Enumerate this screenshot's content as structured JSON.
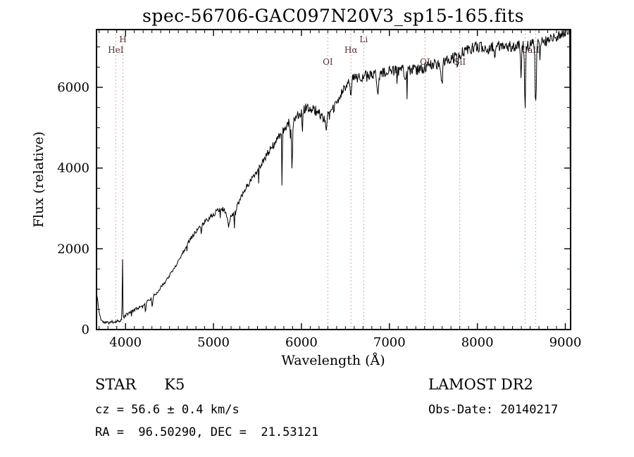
{
  "title": "spec-56706-GAC097N20V3_sp15-165.fits",
  "footer": {
    "class_line": "STAR      K5",
    "survey": "LAMOST DR2",
    "cz_line": "cz = 56.6 ± 0.4 km/s",
    "obs_date_line": "Obs-Date: 20140217",
    "radec_line": "RA =  96.50290, DEC =  21.53121"
  },
  "chart_data": {
    "type": "line",
    "title": "spec-56706-GAC097N20V3_sp15-165.fits",
    "xlabel": "Wavelength (Å)",
    "ylabel": "Flux (relative)",
    "xlim": [
      3670,
      9060
    ],
    "ylim": [
      0,
      7430
    ],
    "x_major_ticks": [
      4000,
      5000,
      6000,
      7000,
      8000,
      9000
    ],
    "y_major_ticks": [
      0,
      2000,
      4000,
      6000
    ],
    "x_minor_step": 100,
    "y_minor_step": 500,
    "grid": false,
    "legend": false,
    "line_color": "#000000",
    "marker_line_color": "#c98f8f",
    "marker_label_color": "#552e2e",
    "line_markers": [
      {
        "label": "HeI",
        "wl": 3889,
        "row": 1
      },
      {
        "label": "H",
        "wl": 3970,
        "row": 0
      },
      {
        "label": "OI",
        "wl": 6300,
        "row": 2
      },
      {
        "label": "Hα",
        "wl": 6563,
        "row": 1
      },
      {
        "label": "Li",
        "wl": 6708,
        "row": 0
      },
      {
        "label": "OI",
        "wl": 7405,
        "row": 2
      },
      {
        "label": "SiI",
        "wl": 7800,
        "row": 2
      },
      {
        "label": "CaII",
        "wl": 8542,
        "row": 1,
        "label_dx": 60
      },
      {
        "label": "",
        "wl": 8662,
        "row": 1
      }
    ],
    "continuum": [
      [
        3672,
        870
      ],
      [
        3685,
        700
      ],
      [
        3700,
        420
      ],
      [
        3720,
        260
      ],
      [
        3745,
        180
      ],
      [
        3800,
        170
      ],
      [
        3850,
        190
      ],
      [
        3900,
        205
      ],
      [
        3950,
        235
      ],
      [
        3990,
        330
      ],
      [
        4050,
        430
      ],
      [
        4150,
        545
      ],
      [
        4250,
        700
      ],
      [
        4350,
        900
      ],
      [
        4450,
        1180
      ],
      [
        4550,
        1500
      ],
      [
        4650,
        1900
      ],
      [
        4750,
        2300
      ],
      [
        4850,
        2560
      ],
      [
        4950,
        2760
      ],
      [
        5050,
        2950
      ],
      [
        5120,
        2980
      ],
      [
        5175,
        2770
      ],
      [
        5235,
        2860
      ],
      [
        5300,
        3250
      ],
      [
        5400,
        3620
      ],
      [
        5500,
        3950
      ],
      [
        5600,
        4300
      ],
      [
        5700,
        4620
      ],
      [
        5800,
        4950
      ],
      [
        5870,
        5150
      ],
      [
        5950,
        5300
      ],
      [
        6050,
        5480
      ],
      [
        6150,
        5450
      ],
      [
        6250,
        5250
      ],
      [
        6320,
        5310
      ],
      [
        6400,
        5600
      ],
      [
        6480,
        5950
      ],
      [
        6550,
        6150
      ],
      [
        6620,
        6250
      ],
      [
        6700,
        6280
      ],
      [
        6800,
        6300
      ],
      [
        6900,
        6330
      ],
      [
        7000,
        6380
      ],
      [
        7100,
        6430
      ],
      [
        7200,
        6450
      ],
      [
        7300,
        6420
      ],
      [
        7400,
        6490
      ],
      [
        7500,
        6560
      ],
      [
        7620,
        6630
      ],
      [
        7720,
        6710
      ],
      [
        7820,
        6850
      ],
      [
        7920,
        6950
      ],
      [
        8020,
        7010
      ],
      [
        8120,
        6960
      ],
      [
        8220,
        7000
      ],
      [
        8320,
        7050
      ],
      [
        8420,
        7000
      ],
      [
        8520,
        7030
      ],
      [
        8620,
        7060
      ],
      [
        8720,
        7110
      ],
      [
        8820,
        7160
      ],
      [
        8900,
        7250
      ],
      [
        8980,
        7370
      ],
      [
        9030,
        7420
      ],
      [
        9048,
        7380
      ],
      [
        9060,
        1400
      ]
    ],
    "absorption_features": [
      {
        "wl": 3965,
        "depth": -1520,
        "sigma": 3
      },
      {
        "wl": 4226,
        "depth": 260,
        "sigma": 4
      },
      {
        "wl": 4305,
        "depth": 220,
        "sigma": 7
      },
      {
        "wl": 4861,
        "depth": 230,
        "sigma": 5
      },
      {
        "wl": 5170,
        "depth": 230,
        "sigma": 11
      },
      {
        "wl": 5780,
        "depth": 1050,
        "sigma": 3
      },
      {
        "wl": 5893,
        "depth": 1300,
        "sigma": 6
      },
      {
        "wl": 6010,
        "depth": 520,
        "sigma": 3
      },
      {
        "wl": 6280,
        "depth": 250,
        "sigma": 9
      },
      {
        "wl": 6563,
        "depth": 380,
        "sigma": 5
      },
      {
        "wl": 6867,
        "depth": 400,
        "sigma": 8
      },
      {
        "wl": 7186,
        "depth": 220,
        "sigma": 12
      },
      {
        "wl": 7594,
        "depth": 540,
        "sigma": 10
      },
      {
        "wl": 7774,
        "depth": 300,
        "sigma": 6
      },
      {
        "wl": 8195,
        "depth": 320,
        "sigma": 5
      },
      {
        "wl": 8498,
        "depth": 850,
        "sigma": 5
      },
      {
        "wl": 8542,
        "depth": 1750,
        "sigma": 5
      },
      {
        "wl": 8662,
        "depth": 1650,
        "sigma": 5
      }
    ],
    "noise_amp": 110,
    "seed": 11,
    "sample_step": 6
  }
}
